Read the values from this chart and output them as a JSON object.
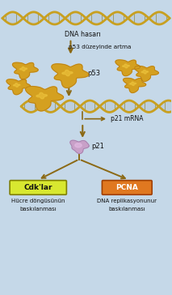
{
  "background_color": "#c5d8e8",
  "dna_color": "#c8a020",
  "dna_shadow": "#a08010",
  "protein_gold": "#d4a020",
  "protein_gold_dark": "#b07010",
  "protein_gold_light": "#f0c840",
  "p21_color": "#c8a0c8",
  "p21_dark": "#9070a0",
  "arrow_color": "#8B6914",
  "box_left_color": "#d8e830",
  "box_left_edge": "#808000",
  "box_right_color": "#e07820",
  "box_right_edge": "#a04000",
  "box_left_text": "Cdk'lar",
  "box_right_text": "PCNA",
  "text_dna_damage": "DNA hasarı",
  "text_p53_rise": "p53 düzeyinde artma",
  "text_p53": "p53",
  "text_p21_mRNA": "p21 mRNA",
  "text_p21": "p21",
  "text_bottom_left1": "Hücre döngüsünün",
  "text_bottom_left2": "baskılanması",
  "text_bottom_right1": "DNA replikasyonunur",
  "text_bottom_right2": "baskılanması",
  "figsize": [
    2.13,
    3.64
  ],
  "dpi": 100
}
